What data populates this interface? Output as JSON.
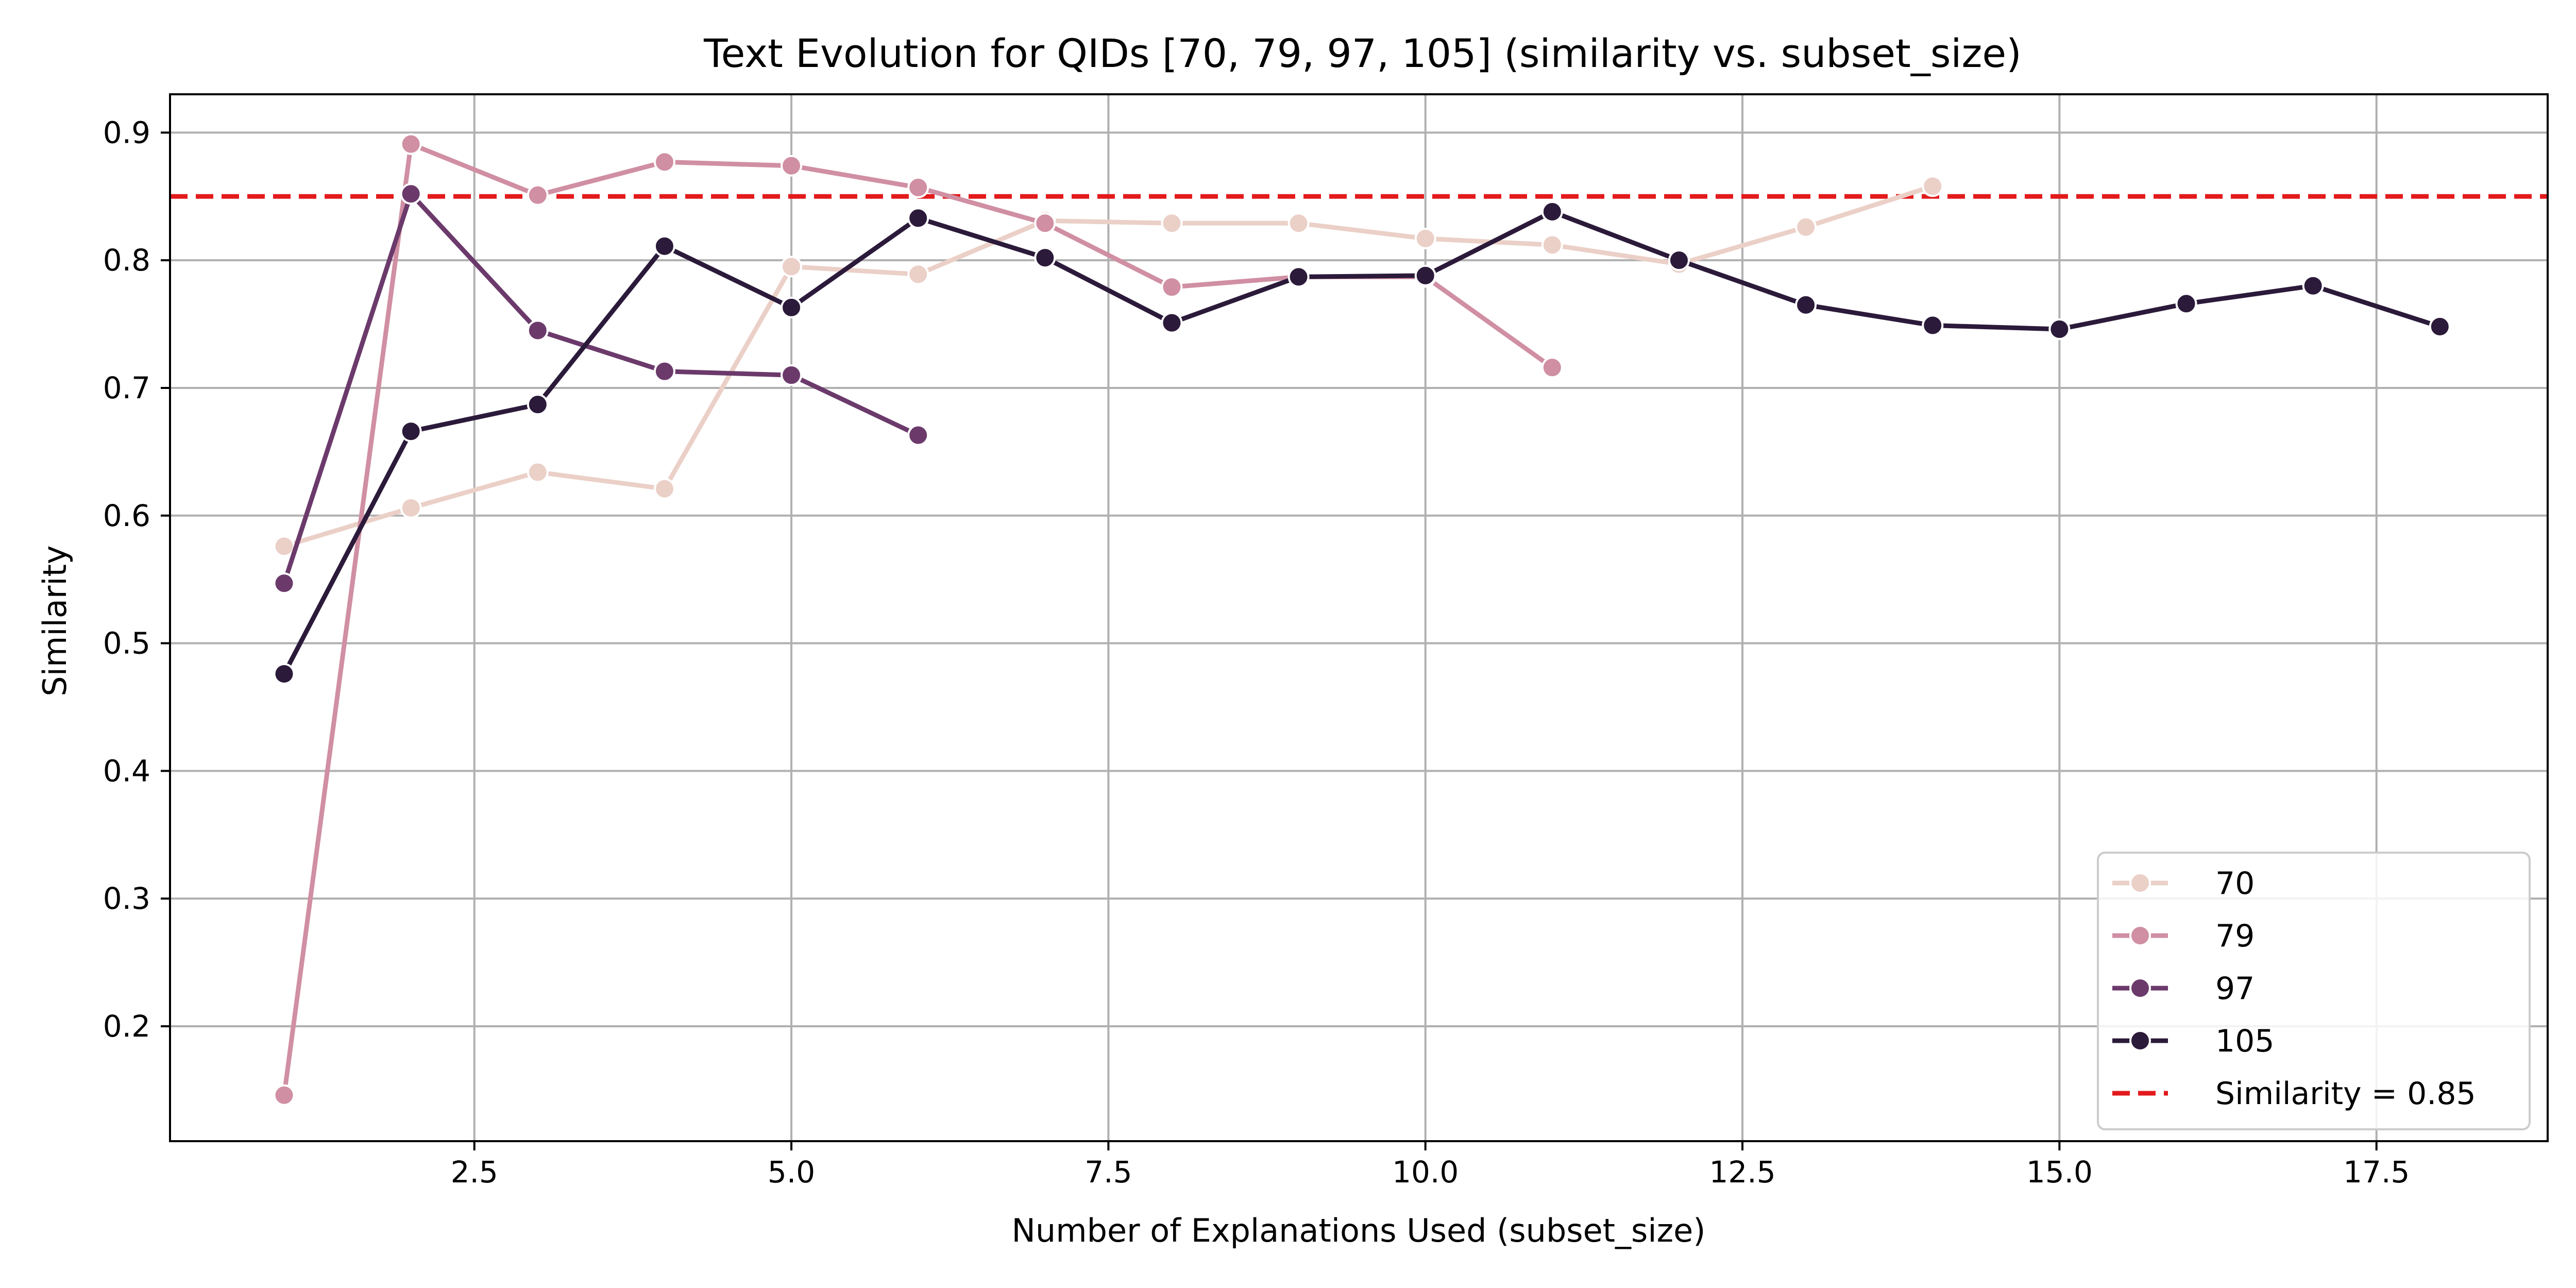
{
  "chart_data": {
    "type": "line",
    "title": "Text Evolution for QIDs [70, 79, 97, 105] (similarity vs. subset_size)",
    "xlabel": "Number of Explanations Used (subset_size)",
    "ylabel": "Similarity",
    "xlim": [
      0.1,
      18.85
    ],
    "ylim": [
      0.11,
      0.93
    ],
    "xticks": [
      2.5,
      5.0,
      7.5,
      10.0,
      12.5,
      15.0,
      17.5
    ],
    "xtick_labels": [
      "2.5",
      "5.0",
      "7.5",
      "10.0",
      "12.5",
      "15.0",
      "17.5"
    ],
    "yticks": [
      0.2,
      0.3,
      0.4,
      0.5,
      0.6,
      0.7,
      0.8,
      0.9
    ],
    "ytick_labels": [
      "0.2",
      "0.3",
      "0.4",
      "0.5",
      "0.6",
      "0.7",
      "0.8",
      "0.9"
    ],
    "grid": true,
    "legend_position": "bottom-right",
    "series": [
      {
        "name": "70",
        "color": "#ebd0c8",
        "x": [
          1,
          2,
          3,
          4,
          5,
          6,
          7,
          8,
          9,
          10,
          11,
          12,
          13,
          14
        ],
        "y": [
          0.576,
          0.606,
          0.634,
          0.621,
          0.795,
          0.789,
          0.831,
          0.829,
          0.829,
          0.817,
          0.812,
          0.797,
          0.826,
          0.858
        ]
      },
      {
        "name": "79",
        "color": "#d08fa3",
        "x": [
          1,
          2,
          3,
          4,
          5,
          6,
          7,
          8,
          9,
          10,
          11
        ],
        "y": [
          0.146,
          0.891,
          0.851,
          0.877,
          0.874,
          0.857,
          0.829,
          0.779,
          0.787,
          0.787,
          0.716
        ]
      },
      {
        "name": "97",
        "color": "#6b3a6b",
        "x": [
          1,
          2,
          3,
          4,
          5,
          6
        ],
        "y": [
          0.547,
          0.852,
          0.745,
          0.713,
          0.71,
          0.663
        ]
      },
      {
        "name": "105",
        "color": "#2b1a3a",
        "x": [
          1,
          2,
          3,
          4,
          5,
          6,
          7,
          8,
          9,
          10,
          11,
          12,
          13,
          14,
          15,
          16,
          17,
          18
        ],
        "y": [
          0.476,
          0.666,
          0.687,
          0.811,
          0.763,
          0.833,
          0.802,
          0.751,
          0.787,
          0.788,
          0.838,
          0.8,
          0.765,
          0.749,
          0.746,
          0.766,
          0.78,
          0.748
        ]
      }
    ],
    "reference_line": {
      "label": "Similarity = 0.85",
      "y": 0.85,
      "color": "#e31a1c",
      "style": "dashed"
    }
  }
}
